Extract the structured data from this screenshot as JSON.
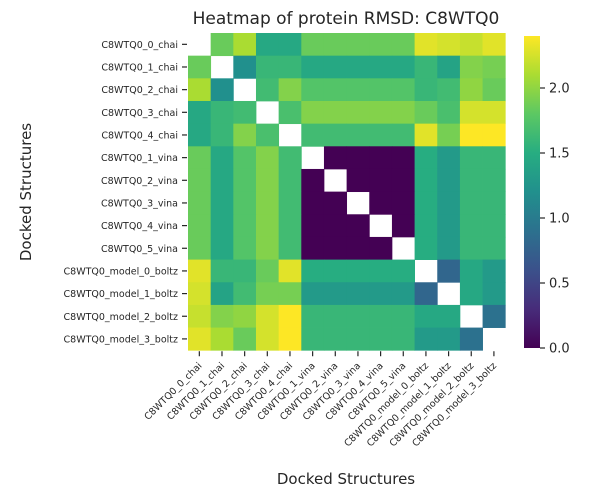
{
  "chart_data": {
    "type": "heatmap",
    "title": "Heatmap of protein RMSD: C8WTQ0",
    "xlabel": "Docked Structures",
    "ylabel": "Docked Structures",
    "labels": [
      "C8WTQ0_0_chai",
      "C8WTQ0_1_chai",
      "C8WTQ0_2_chai",
      "C8WTQ0_3_chai",
      "C8WTQ0_4_chai",
      "C8WTQ0_1_vina",
      "C8WTQ0_2_vina",
      "C8WTQ0_3_vina",
      "C8WTQ0_4_vina",
      "C8WTQ0_5_vina",
      "C8WTQ0_model_0_boltz",
      "C8WTQ0_model_1_boltz",
      "C8WTQ0_model_2_boltz",
      "C8WTQ0_model_3_boltz"
    ],
    "values": [
      [
        0.0,
        1.85,
        2.1,
        1.45,
        1.45,
        1.85,
        1.85,
        1.85,
        1.85,
        1.85,
        2.3,
        2.25,
        2.2,
        2.3
      ],
      [
        1.85,
        0.0,
        1.2,
        1.6,
        1.6,
        1.45,
        1.45,
        1.45,
        1.45,
        1.45,
        1.6,
        1.4,
        1.95,
        1.9
      ],
      [
        2.1,
        1.2,
        0.0,
        1.65,
        1.95,
        1.75,
        1.75,
        1.75,
        1.75,
        1.75,
        1.6,
        1.65,
        2.0,
        1.85
      ],
      [
        1.45,
        1.6,
        1.65,
        0.0,
        1.7,
        1.95,
        1.95,
        1.95,
        1.95,
        1.95,
        1.85,
        1.7,
        2.25,
        2.25
      ],
      [
        1.45,
        1.6,
        1.95,
        1.7,
        0.0,
        1.65,
        1.65,
        1.65,
        1.65,
        1.65,
        2.3,
        1.9,
        2.4,
        2.4
      ],
      [
        1.85,
        1.45,
        1.75,
        1.95,
        1.65,
        0.0,
        0.0,
        0.0,
        0.0,
        0.0,
        1.5,
        1.3,
        1.6,
        1.6
      ],
      [
        1.85,
        1.45,
        1.75,
        1.95,
        1.65,
        0.0,
        0.0,
        0.0,
        0.0,
        0.0,
        1.5,
        1.3,
        1.6,
        1.6
      ],
      [
        1.85,
        1.45,
        1.75,
        1.95,
        1.65,
        0.0,
        0.0,
        0.0,
        0.0,
        0.0,
        1.5,
        1.3,
        1.6,
        1.6
      ],
      [
        1.85,
        1.45,
        1.75,
        1.95,
        1.65,
        0.0,
        0.0,
        0.0,
        0.0,
        0.0,
        1.5,
        1.3,
        1.6,
        1.6
      ],
      [
        1.85,
        1.45,
        1.75,
        1.95,
        1.65,
        0.0,
        0.0,
        0.0,
        0.0,
        0.0,
        1.5,
        1.3,
        1.6,
        1.6
      ],
      [
        2.3,
        1.6,
        1.6,
        1.85,
        2.3,
        1.5,
        1.5,
        1.5,
        1.5,
        1.5,
        0.0,
        0.8,
        1.45,
        1.3
      ],
      [
        2.25,
        1.4,
        1.65,
        1.9,
        1.9,
        1.3,
        1.3,
        1.3,
        1.3,
        1.3,
        0.8,
        0.0,
        1.45,
        1.3
      ],
      [
        2.2,
        1.95,
        2.0,
        2.25,
        2.4,
        1.6,
        1.6,
        1.6,
        1.6,
        1.6,
        1.45,
        1.45,
        0.0,
        0.9
      ],
      [
        2.3,
        2.1,
        1.85,
        2.25,
        2.4,
        1.6,
        1.6,
        1.6,
        1.6,
        1.6,
        1.3,
        1.3,
        0.9,
        0.0
      ]
    ],
    "masked_diagonal": true,
    "colormap": "viridis",
    "vmin": 0.0,
    "vmax": 2.4,
    "colorbar_ticks": [
      "0.0",
      "0.5",
      "1.0",
      "1.5",
      "2.0"
    ],
    "colorbar_tick_values": [
      0.0,
      0.5,
      1.0,
      1.5,
      2.0
    ],
    "grid": false
  }
}
